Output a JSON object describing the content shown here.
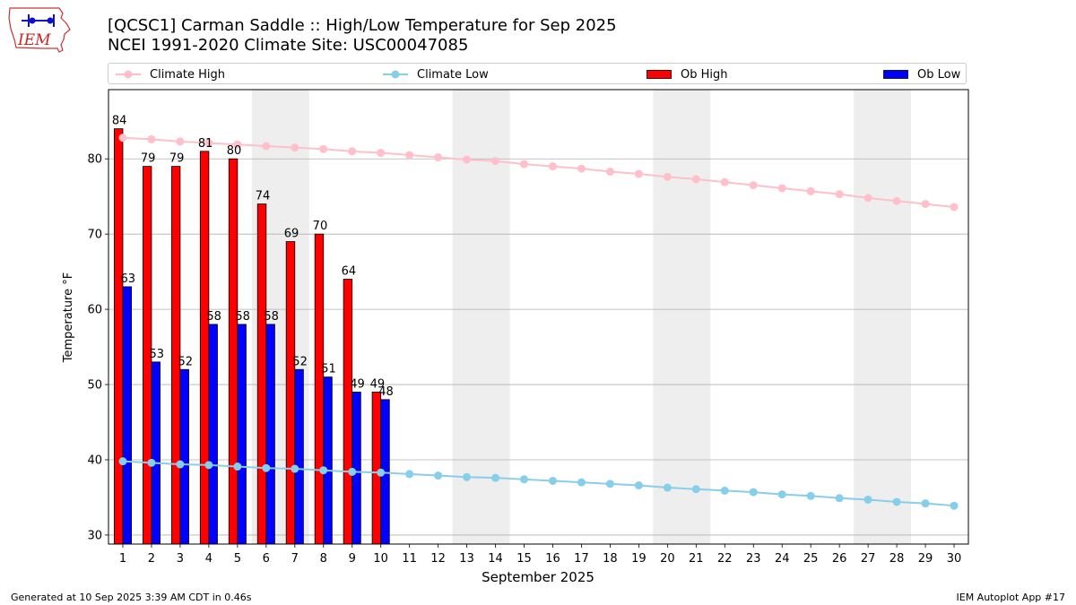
{
  "header": {
    "title_line1": "[QCSC1] Carman Saddle :: High/Low Temperature for Sep 2025",
    "title_line2": "NCEI 1991-2020 Climate Site: USC00047085"
  },
  "logo": {
    "text": "IEM",
    "icon": "iowa-state-outline-logo"
  },
  "footer": {
    "left": "Generated at 10 Sep 2025 3:39 AM CDT in 0.46s",
    "right": "IEM Autoplot App #17"
  },
  "colors": {
    "climate_high": "#ffc0cb",
    "climate_low": "#87ceeb",
    "ob_high": "#ff0000",
    "ob_low": "#0000ff",
    "weekend_shade": "#eeeeee",
    "grid": "#b0b0b0"
  },
  "chart_data": {
    "type": "bar",
    "xlabel": "September 2025",
    "ylabel": "Temperature °F",
    "ylim": [
      28.8,
      89.2
    ],
    "yticks": [
      30,
      40,
      50,
      60,
      70,
      80
    ],
    "xlim": [
      0.5,
      30.5
    ],
    "grid": "horizontal",
    "legend_position": "top",
    "days": [
      1,
      2,
      3,
      4,
      5,
      6,
      7,
      8,
      9,
      10,
      11,
      12,
      13,
      14,
      15,
      16,
      17,
      18,
      19,
      20,
      21,
      22,
      23,
      24,
      25,
      26,
      27,
      28,
      29,
      30
    ],
    "weekend_days": [
      6,
      7,
      13,
      14,
      20,
      21,
      27,
      28
    ],
    "series": [
      {
        "name": "Climate High",
        "kind": "line",
        "values": [
          82.8,
          82.6,
          82.3,
          82.1,
          81.9,
          81.7,
          81.5,
          81.3,
          81.0,
          80.8,
          80.5,
          80.2,
          79.9,
          79.7,
          79.3,
          79.0,
          78.7,
          78.3,
          78.0,
          77.6,
          77.3,
          76.9,
          76.5,
          76.1,
          75.7,
          75.3,
          74.8,
          74.4,
          74.0,
          73.6
        ]
      },
      {
        "name": "Climate Low",
        "kind": "line",
        "values": [
          39.8,
          39.6,
          39.4,
          39.3,
          39.1,
          38.9,
          38.8,
          38.6,
          38.4,
          38.3,
          38.1,
          37.9,
          37.7,
          37.6,
          37.4,
          37.2,
          37.0,
          36.8,
          36.6,
          36.3,
          36.1,
          35.9,
          35.7,
          35.4,
          35.2,
          34.9,
          34.7,
          34.4,
          34.2,
          33.9
        ]
      },
      {
        "name": "Ob High",
        "kind": "bar",
        "values": [
          84,
          79,
          79,
          81,
          80,
          74,
          69,
          70,
          64,
          49
        ]
      },
      {
        "name": "Ob Low",
        "kind": "bar",
        "values": [
          63,
          53,
          52,
          58,
          58,
          58,
          52,
          51,
          49,
          48
        ]
      }
    ]
  }
}
